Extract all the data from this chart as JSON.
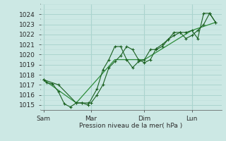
{
  "bg_color": "#cce8e4",
  "grid_major_color": "#aad4ce",
  "grid_minor_color": "#bcdeda",
  "line_color_dark": "#1a6020",
  "line_color_light": "#2d8c3a",
  "xlabel": "Pression niveau de la mer( hPa )",
  "ylim": [
    1014.5,
    1025.0
  ],
  "yticks": [
    1015,
    1016,
    1017,
    1018,
    1019,
    1020,
    1021,
    1022,
    1023,
    1024
  ],
  "day_labels": [
    "Sam",
    "Mar",
    "Dim",
    "Lun"
  ],
  "series1_x": [
    0,
    0.5,
    1.5,
    2.5,
    3.5,
    4.5,
    5.5,
    6.5,
    7.5,
    8,
    9,
    10,
    11,
    12,
    13,
    14,
    15,
    16,
    17,
    18,
    19,
    20,
    21,
    22,
    23,
    24,
    25,
    26,
    27,
    28,
    29
  ],
  "series1_y": [
    1017.5,
    1017.2,
    1017.1,
    1016.3,
    1015.1,
    1014.8,
    1015.2,
    1015.2,
    1015.2,
    1015.2,
    1016.0,
    1017.0,
    1018.7,
    1019.3,
    1019.9,
    1020.8,
    1020.5,
    1019.5,
    1019.2,
    1019.5,
    1020.6,
    1021.0,
    1021.5,
    1022.2,
    1022.2,
    1021.6,
    1021.9,
    1022.4,
    1023.0,
    1024.1,
    1023.2
  ],
  "series2_x": [
    0,
    2.5,
    5.5,
    6.5,
    7.5,
    9,
    10,
    11,
    12,
    13,
    14,
    15,
    16,
    17,
    18,
    19,
    20,
    21,
    22,
    23,
    24,
    25,
    26,
    27,
    28,
    29
  ],
  "series2_y": [
    1017.5,
    1017.0,
    1015.2,
    1015.2,
    1015.0,
    1016.6,
    1018.5,
    1019.5,
    1020.8,
    1020.8,
    1019.5,
    1018.7,
    1019.3,
    1019.5,
    1020.5,
    1020.5,
    1020.8,
    1021.5,
    1021.9,
    1022.2,
    1022.2,
    1022.4,
    1021.6,
    1024.1,
    1024.1,
    1023.2
  ],
  "series3_x": [
    0,
    5.5,
    12,
    17,
    25,
    29
  ],
  "series3_y": [
    1017.5,
    1015.2,
    1019.5,
    1019.5,
    1022.4,
    1023.2
  ],
  "xlim": [
    -0.5,
    30
  ],
  "vline_positions": [
    0,
    8,
    17,
    25
  ]
}
